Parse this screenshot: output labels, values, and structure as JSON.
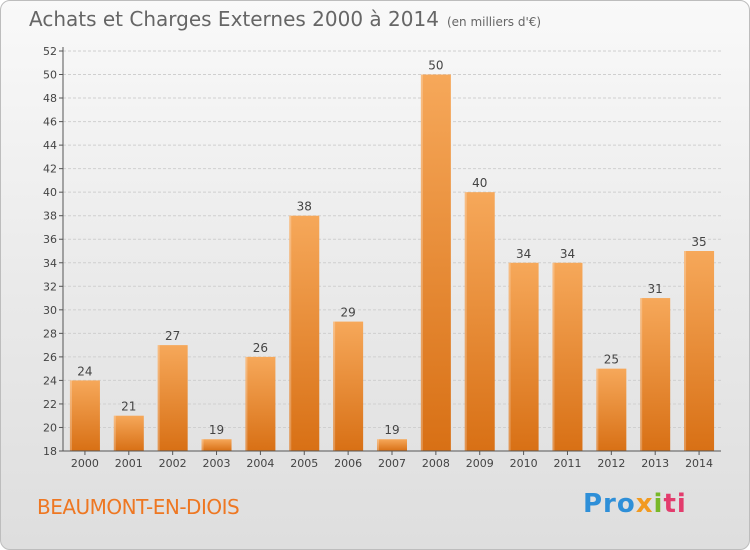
{
  "page": {
    "title": "Achats et Charges Externes 2000 à 2014",
    "title_unit": "(en milliers d'€)",
    "city": "BEAUMONT-EN-DIOIS",
    "logo": {
      "part1": "Pro",
      "part2": "x",
      "part3": "i",
      "part4": "ti"
    }
  },
  "colors": {
    "bar_top": "#f6a85a",
    "bar_bottom": "#d87015",
    "grid": "#cfcfcf",
    "text": "#444444",
    "city": "#ee7722"
  },
  "chart_data": {
    "type": "bar",
    "title": "Achats et Charges Externes 2000 à 2014",
    "subtitle": "(en milliers d'€)",
    "xlabel": "",
    "ylabel": "",
    "categories": [
      "2000",
      "2001",
      "2002",
      "2003",
      "2004",
      "2005",
      "2006",
      "2007",
      "2008",
      "2009",
      "2010",
      "2011",
      "2012",
      "2013",
      "2014"
    ],
    "values": [
      24,
      21,
      27,
      19,
      26,
      38,
      29,
      19,
      50,
      40,
      34,
      34,
      25,
      31,
      35
    ],
    "ylim": [
      18,
      52
    ],
    "yticks": [
      18,
      20,
      22,
      24,
      26,
      28,
      30,
      32,
      34,
      36,
      38,
      40,
      42,
      44,
      46,
      48,
      50,
      52
    ],
    "grid": true,
    "data_labels": true
  }
}
